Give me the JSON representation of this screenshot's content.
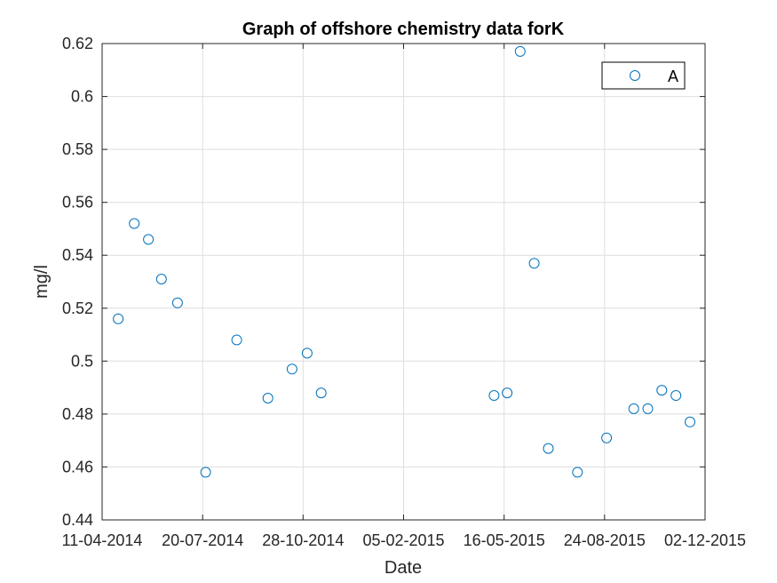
{
  "chart_data": {
    "type": "scatter",
    "title": "Graph of offshore chemistry data forK",
    "xlabel": "Date",
    "ylabel": "mg/l",
    "xlim": [
      "2014-04-11",
      "2015-12-02"
    ],
    "ylim": [
      0.44,
      0.62
    ],
    "x_tick_labels": [
      "11-04-2014",
      "20-07-2014",
      "28-10-2014",
      "05-02-2015",
      "16-05-2015",
      "24-08-2015",
      "02-12-2015"
    ],
    "x_ticks": [
      "2014-04-11",
      "2014-07-20",
      "2014-10-28",
      "2015-02-05",
      "2015-05-16",
      "2015-08-24",
      "2015-12-02"
    ],
    "y_ticks": [
      0.44,
      0.46,
      0.48,
      0.5,
      0.52,
      0.54,
      0.56,
      0.58,
      0.6,
      0.62
    ],
    "y_tick_labels": [
      "0.44",
      "0.46",
      "0.48",
      "0.5",
      "0.52",
      "0.54",
      "0.56",
      "0.58",
      "0.6",
      "0.62"
    ],
    "grid": true,
    "legend_position": "top-right",
    "marker": "open-circle",
    "series": [
      {
        "name": "A",
        "color": "#0072BD",
        "points": [
          {
            "x": "2014-04-27",
            "y": 0.516
          },
          {
            "x": "2014-05-13",
            "y": 0.552
          },
          {
            "x": "2014-05-27",
            "y": 0.546
          },
          {
            "x": "2014-06-09",
            "y": 0.531
          },
          {
            "x": "2014-06-25",
            "y": 0.522
          },
          {
            "x": "2014-07-23",
            "y": 0.458
          },
          {
            "x": "2014-08-23",
            "y": 0.508
          },
          {
            "x": "2014-09-23",
            "y": 0.486
          },
          {
            "x": "2014-10-17",
            "y": 0.497
          },
          {
            "x": "2014-11-01",
            "y": 0.503
          },
          {
            "x": "2014-11-15",
            "y": 0.488
          },
          {
            "x": "2015-05-06",
            "y": 0.487
          },
          {
            "x": "2015-05-19",
            "y": 0.488
          },
          {
            "x": "2015-06-01",
            "y": 0.617
          },
          {
            "x": "2015-06-15",
            "y": 0.537
          },
          {
            "x": "2015-06-29",
            "y": 0.467
          },
          {
            "x": "2015-07-28",
            "y": 0.458
          },
          {
            "x": "2015-08-26",
            "y": 0.471
          },
          {
            "x": "2015-09-22",
            "y": 0.482
          },
          {
            "x": "2015-10-06",
            "y": 0.482
          },
          {
            "x": "2015-10-20",
            "y": 0.489
          },
          {
            "x": "2015-11-03",
            "y": 0.487
          },
          {
            "x": "2015-11-17",
            "y": 0.477
          }
        ]
      }
    ]
  }
}
